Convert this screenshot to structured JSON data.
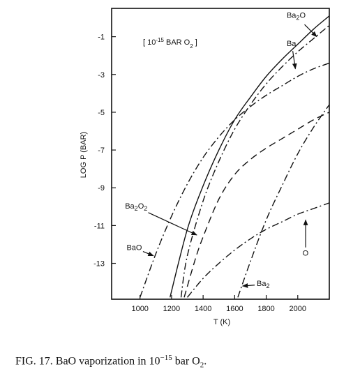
{
  "caption": {
    "prefix": "FIG. 17.",
    "text": "BaO vaporization in 10",
    "exponent": "−15",
    "unit": "bar O",
    "subscript": "2",
    "suffix": "."
  },
  "chart_data": {
    "type": "line",
    "title": "[ 10^-15 BAR O2 ]",
    "title_parts": {
      "open": "[ 10",
      "sup": "-15",
      "mid": " BAR O",
      "sub": "2",
      "close": " ]"
    },
    "xlabel": "T (K)",
    "ylabel": "LOG P (BAR)",
    "xlim": [
      820,
      2200
    ],
    "ylim": [
      -14.9,
      0.5
    ],
    "xticks": [
      1000,
      1200,
      1400,
      1600,
      1800,
      2000
    ],
    "yticks": [
      -1,
      -3,
      -5,
      -7,
      -9,
      -11,
      -13
    ],
    "grid": false,
    "legend": "none",
    "series": [
      {
        "name": "BaO",
        "dash": "dashdot",
        "x": [
          1000,
          1100,
          1200,
          1300,
          1400,
          1500,
          1600,
          1700,
          1800,
          1900,
          2000,
          2100,
          2200
        ],
        "y": [
          -14.8,
          -12.5,
          -10.5,
          -8.8,
          -7.4,
          -6.3,
          -5.4,
          -4.7,
          -4.1,
          -3.6,
          -3.1,
          -2.7,
          -2.4
        ]
      },
      {
        "name": "Ba",
        "dash": "solid",
        "x": [
          1190,
          1300,
          1400,
          1500,
          1600,
          1700,
          1800,
          1900,
          2000,
          2100,
          2200
        ],
        "y": [
          -14.8,
          -11.2,
          -8.9,
          -7.0,
          -5.4,
          -4.2,
          -3.1,
          -2.2,
          -1.4,
          -0.6,
          0.1
        ]
      },
      {
        "name": "Ba2O",
        "dash": "dashdot",
        "x": [
          1260,
          1300,
          1400,
          1500,
          1600,
          1700,
          1800,
          1900,
          2000,
          2100,
          2200
        ],
        "y": [
          -14.8,
          -12.6,
          -9.7,
          -7.6,
          -5.9,
          -4.6,
          -3.5,
          -2.6,
          -1.8,
          -1.1,
          -0.4
        ]
      },
      {
        "name": "Ba2O2",
        "dash": "dashed",
        "x": [
          1280,
          1350,
          1400,
          1500,
          1600,
          1700,
          1800,
          1900,
          2000,
          2100,
          2200
        ],
        "y": [
          -14.8,
          -12.8,
          -11.6,
          -9.6,
          -8.3,
          -7.5,
          -6.9,
          -6.4,
          -5.9,
          -5.4,
          -5.0
        ]
      },
      {
        "name": "Ba2",
        "dash": "dashdot",
        "x": [
          1620,
          1700,
          1800,
          1900,
          2000,
          2100,
          2200
        ],
        "y": [
          -14.8,
          -12.9,
          -10.7,
          -8.9,
          -7.2,
          -5.8,
          -4.6
        ]
      },
      {
        "name": "O",
        "dash": "dashdot",
        "x": [
          1300,
          1400,
          1500,
          1600,
          1700,
          1800,
          1900,
          2000,
          2100,
          2200
        ],
        "y": [
          -14.8,
          -13.8,
          -13.0,
          -12.3,
          -11.7,
          -11.2,
          -10.8,
          -10.4,
          -10.1,
          -9.8
        ]
      }
    ],
    "annotations": [
      {
        "label": "BaO",
        "sub": "",
        "text_at": [
          915,
          -12.3
        ],
        "arrow_to": [
          1085,
          -12.6
        ]
      },
      {
        "label": "Ba2O2",
        "parts": [
          "Ba",
          "2",
          "O",
          "2"
        ],
        "text_at": [
          905,
          -10.1
        ],
        "arrow_to": [
          1360,
          -11.5
        ]
      },
      {
        "label": "Ba2O",
        "parts": [
          "Ba",
          "2",
          "O",
          ""
        ],
        "text_at": [
          1930,
          0.0
        ],
        "arrow_to": [
          2120,
          -1.0
        ]
      },
      {
        "label": "Ba",
        "parts": [
          "Ba",
          "",
          "",
          ""
        ],
        "text_at": [
          1930,
          -1.5
        ],
        "arrow_to": [
          1985,
          -2.7
        ]
      },
      {
        "label": "Ba2",
        "parts": [
          "Ba",
          "2",
          "",
          ""
        ],
        "text_at": [
          1740,
          -14.2
        ],
        "arrow_to": [
          1650,
          -14.2
        ]
      },
      {
        "label": "O",
        "parts": [
          "O",
          "",
          "",
          ""
        ],
        "text_at": [
          2030,
          -12.6
        ],
        "arrow_to": [
          2050,
          -10.7
        ]
      }
    ]
  }
}
